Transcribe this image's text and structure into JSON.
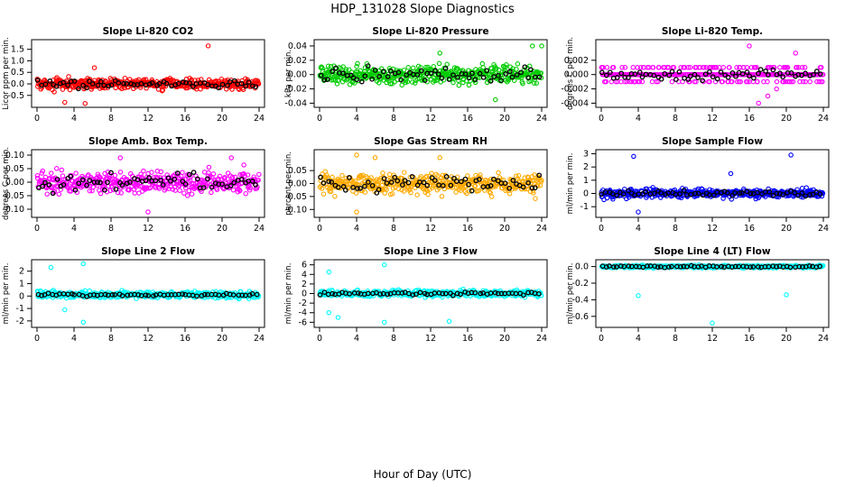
{
  "figure": {
    "title": "HDP_131028  Slope Diagnostics",
    "xlabel": "Hour of Day (UTC)"
  },
  "chart_data": [
    {
      "type": "scatter",
      "title": "Slope Li-820 CO2",
      "ylabel": "Licor ppm per min.",
      "color": "#ff0000",
      "xlim": [
        0,
        24
      ],
      "ylim": [
        -0.9,
        1.8
      ],
      "xticks": [
        0,
        4,
        8,
        12,
        16,
        20,
        24
      ],
      "yticks": [
        -0.5,
        0,
        0.5,
        1,
        1.5
      ],
      "ytick_labels": [
        "-0.5",
        "0.0",
        "0.5",
        "1.0",
        "1.5"
      ],
      "center": 0.0,
      "spread": 0.22,
      "outliers": [
        [
          5.2,
          -0.85
        ],
        [
          6.2,
          0.7
        ],
        [
          18.5,
          1.65
        ],
        [
          3,
          -0.8
        ]
      ],
      "black_spread": 0.15
    },
    {
      "type": "scatter",
      "title": "Slope Li-820 Pressure",
      "ylabel": "kPa per min.",
      "color": "#00cc00",
      "xlim": [
        0,
        24
      ],
      "ylim": [
        -0.042,
        0.045
      ],
      "xticks": [
        0,
        4,
        8,
        12,
        16,
        20,
        24
      ],
      "yticks": [
        -0.04,
        -0.02,
        0,
        0.02,
        0.04
      ],
      "ytick_labels": [
        "-0.04",
        "-0.02",
        "0.00",
        "0.02",
        "0.04"
      ],
      "center": 0.0,
      "spread": 0.012,
      "outliers": [
        [
          13,
          0.03
        ],
        [
          24,
          0.04
        ],
        [
          19,
          -0.035
        ],
        [
          23,
          0.04
        ]
      ],
      "black_spread": 0.01
    },
    {
      "type": "scatter",
      "title": "Slope Li-820 Temp.",
      "ylabel": "degrees C per min.",
      "color": "#ff00ff",
      "xlim": [
        0,
        24
      ],
      "ylim": [
        -0.0042,
        0.0045
      ],
      "xticks": [
        0,
        4,
        8,
        12,
        16,
        20,
        24
      ],
      "yticks": [
        -0.004,
        -0.002,
        0,
        0.002
      ],
      "ytick_labels": [
        "-0.004",
        "-0.002",
        "0.000",
        "0.002"
      ],
      "center": 0.0,
      "spread": 0.001,
      "outliers": [
        [
          16,
          0.004
        ],
        [
          17,
          -0.004
        ],
        [
          21,
          0.003
        ],
        [
          18,
          -0.003
        ]
      ],
      "black_spread": 0.0006
    },
    {
      "type": "scatter",
      "title": "Slope Amb. Box Temp.",
      "ylabel": "degrees C per min.",
      "color": "#ff00ff",
      "xlim": [
        0,
        24
      ],
      "ylim": [
        -0.12,
        0.11
      ],
      "xticks": [
        0,
        4,
        8,
        12,
        16,
        20,
        24
      ],
      "yticks": [
        -0.1,
        -0.05,
        0,
        0.05,
        0.1
      ],
      "ytick_labels": [
        "-0.10",
        "-0.05",
        "0.00",
        "0.05",
        "0.10"
      ],
      "center": 0.0,
      "spread": 0.04,
      "outliers": [
        [
          12,
          -0.11
        ],
        [
          9,
          0.09
        ],
        [
          21,
          0.09
        ]
      ],
      "black_spread": 0.03
    },
    {
      "type": "scatter",
      "title": "Slope Gas Stream RH",
      "ylabel": "percent per min.",
      "color": "#ffaa00",
      "xlim": [
        0,
        24
      ],
      "ylim": [
        -0.12,
        0.12
      ],
      "xticks": [
        0,
        4,
        8,
        12,
        16,
        20,
        24
      ],
      "yticks": [
        -0.1,
        -0.05,
        0,
        0.05
      ],
      "ytick_labels": [
        "-0.10",
        "-0.05",
        "0.00",
        "0.05"
      ],
      "center": 0.0,
      "spread": 0.035,
      "outliers": [
        [
          4,
          -0.11
        ],
        [
          4,
          0.11
        ],
        [
          6,
          0.1
        ],
        [
          13,
          0.1
        ]
      ],
      "black_spread": 0.03
    },
    {
      "type": "scatter",
      "title": "Slope Sample Flow",
      "ylabel": "ml/min per min.",
      "color": "#0000ff",
      "xlim": [
        0,
        24
      ],
      "ylim": [
        -1.6,
        3.1
      ],
      "xticks": [
        0,
        4,
        8,
        12,
        16,
        20,
        24
      ],
      "yticks": [
        -1,
        0,
        1,
        2,
        3
      ],
      "ytick_labels": [
        "-1",
        "0",
        "1",
        "2",
        "3"
      ],
      "center": 0.0,
      "spread": 0.3,
      "outliers": [
        [
          3.5,
          2.8
        ],
        [
          20.5,
          2.9
        ],
        [
          4,
          -1.4
        ],
        [
          14,
          1.5
        ]
      ],
      "black_spread": 0.15
    },
    {
      "type": "scatter",
      "title": "Slope Line 2 Flow",
      "ylabel": "ml/min per min.",
      "color": "#00ffff",
      "xlim": [
        0,
        24
      ],
      "ylim": [
        -2.3,
        2.7
      ],
      "xticks": [
        0,
        4,
        8,
        12,
        16,
        20,
        24
      ],
      "yticks": [
        -2,
        -1,
        0,
        1,
        2
      ],
      "ytick_labels": [
        "-2",
        "-1",
        "0",
        "1",
        "2"
      ],
      "center": 0.1,
      "spread": 0.25,
      "outliers": [
        [
          1.5,
          2.3
        ],
        [
          5,
          2.6
        ],
        [
          5,
          -2.1
        ],
        [
          3,
          -1.1
        ]
      ],
      "black_spread": 0.1
    },
    {
      "type": "scatter",
      "title": "Slope Line 3 Flow",
      "ylabel": "ml/min per min.",
      "color": "#00ffff",
      "xlim": [
        0,
        24
      ],
      "ylim": [
        -6.5,
        6.5
      ],
      "xticks": [
        0,
        4,
        8,
        12,
        16,
        20,
        24
      ],
      "yticks": [
        -6,
        -4,
        -2,
        0,
        2,
        4,
        6
      ],
      "ytick_labels": [
        "-6",
        "-4",
        "-2",
        "0",
        "2",
        "4",
        "6"
      ],
      "center": 0.0,
      "spread": 0.6,
      "outliers": [
        [
          1,
          4.5
        ],
        [
          7,
          6
        ],
        [
          1,
          -4
        ],
        [
          2,
          -5
        ],
        [
          7,
          -6
        ],
        [
          14,
          -5.8
        ]
      ],
      "black_spread": 0.3
    },
    {
      "type": "scatter",
      "title": "Slope Line 4 (LT) Flow",
      "ylabel": "ml/min per min.",
      "color": "#00ffff",
      "xlim": [
        0,
        24
      ],
      "ylim": [
        -0.7,
        0.05
      ],
      "xticks": [
        0,
        4,
        8,
        12,
        16,
        20,
        24
      ],
      "yticks": [
        -0.6,
        -0.4,
        -0.2,
        0
      ],
      "ytick_labels": [
        "-0.6",
        "-0.4",
        "-0.2",
        "0.0"
      ],
      "center": 0.0,
      "spread": 0.015,
      "outliers": [
        [
          4,
          -0.35
        ],
        [
          12,
          -0.68
        ],
        [
          20,
          -0.34
        ]
      ],
      "black_spread": 0.01
    }
  ]
}
